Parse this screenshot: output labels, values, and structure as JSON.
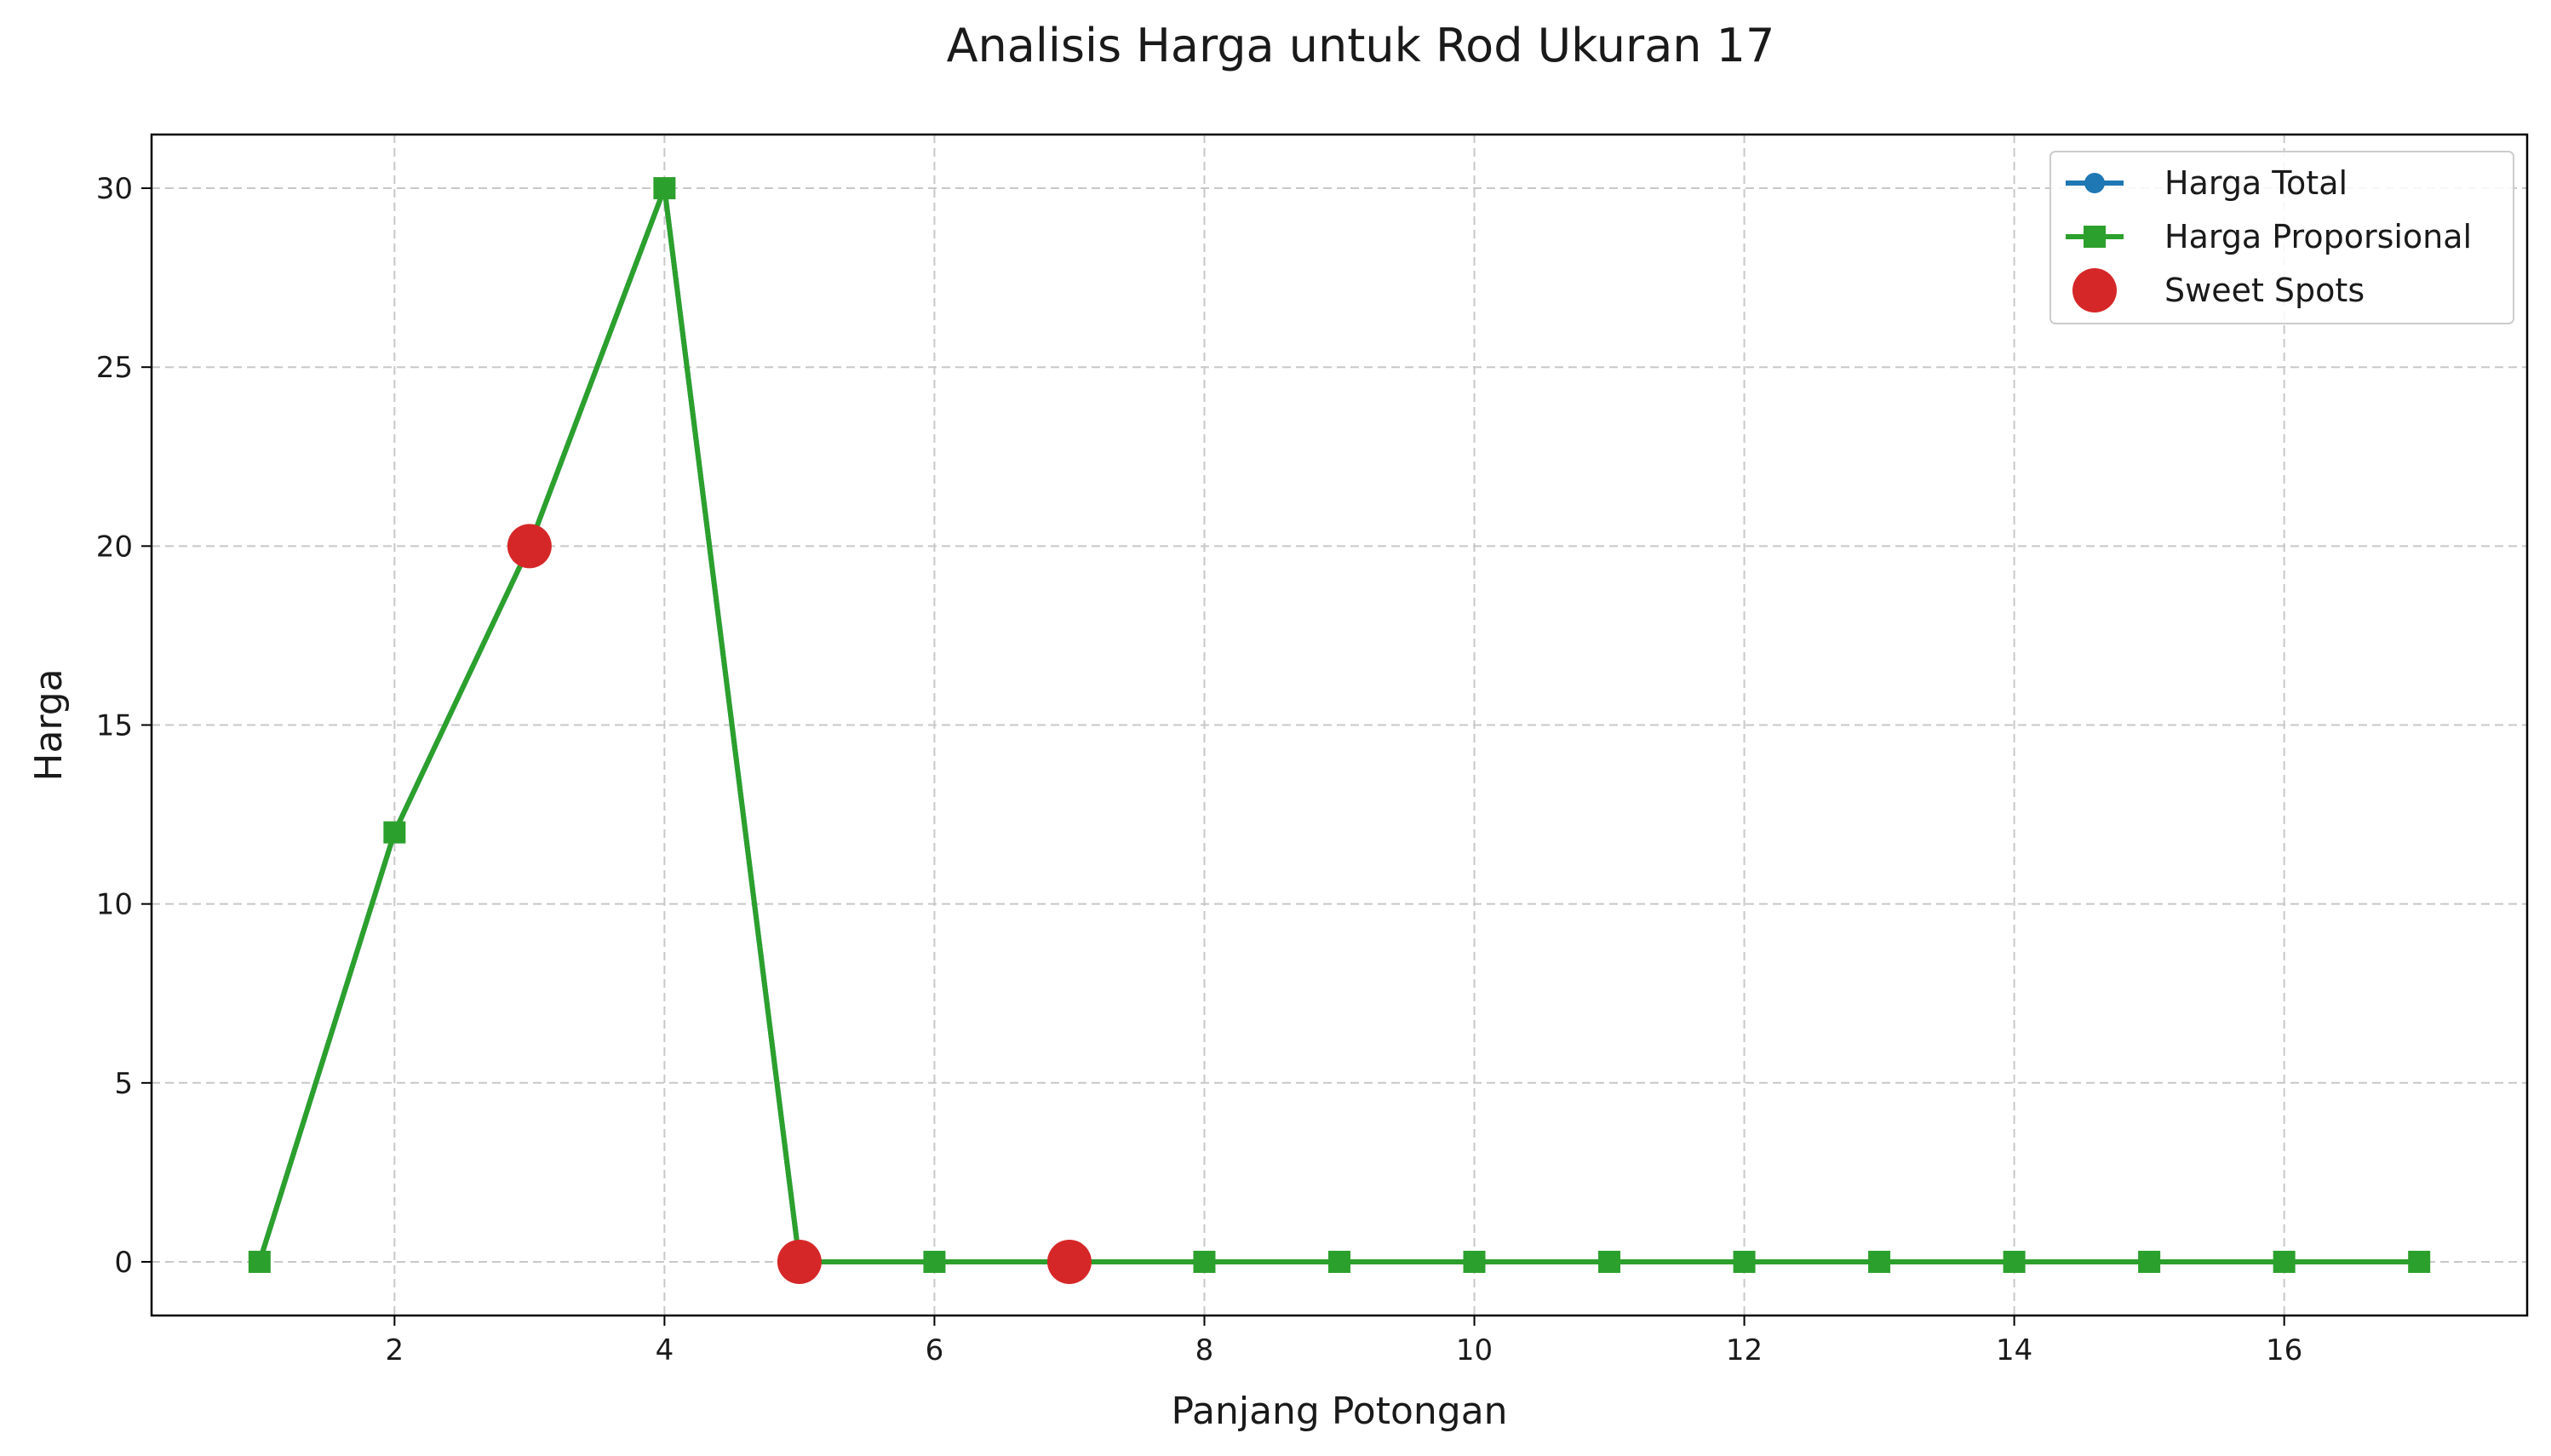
{
  "chart_data": {
    "type": "line",
    "title": "Analisis Harga untuk Rod Ukuran 17",
    "xlabel": "Panjang Potongan",
    "ylabel": "Harga",
    "xlim": [
      0.2,
      17.8
    ],
    "ylim": [
      -1.5,
      31.5
    ],
    "xticks": [
      2,
      4,
      6,
      8,
      10,
      12,
      14,
      16
    ],
    "yticks": [
      0,
      5,
      10,
      15,
      20,
      25,
      30
    ],
    "grid": true,
    "legend_position": "top-right",
    "series": [
      {
        "name": "Harga Total",
        "color": "#1f77b4",
        "marker": "circle",
        "x": [
          1,
          2,
          3,
          4,
          5,
          6,
          7,
          8,
          9,
          10,
          11,
          12,
          13,
          14,
          15,
          16,
          17
        ],
        "values": [
          0,
          12,
          20,
          30,
          0,
          0,
          0,
          0,
          0,
          0,
          0,
          0,
          0,
          0,
          0,
          0,
          0
        ]
      },
      {
        "name": "Harga Proporsional",
        "color": "#2ca02c",
        "marker": "square",
        "x": [
          1,
          2,
          3,
          4,
          5,
          6,
          7,
          8,
          9,
          10,
          11,
          12,
          13,
          14,
          15,
          16,
          17
        ],
        "values": [
          0,
          12,
          20,
          30,
          0,
          0,
          0,
          0,
          0,
          0,
          0,
          0,
          0,
          0,
          0,
          0,
          0
        ]
      },
      {
        "name": "Sweet Spots",
        "color": "#d62728",
        "marker": "big-circle",
        "x": [
          3,
          5,
          7
        ],
        "values": [
          20,
          0,
          0
        ]
      }
    ]
  }
}
